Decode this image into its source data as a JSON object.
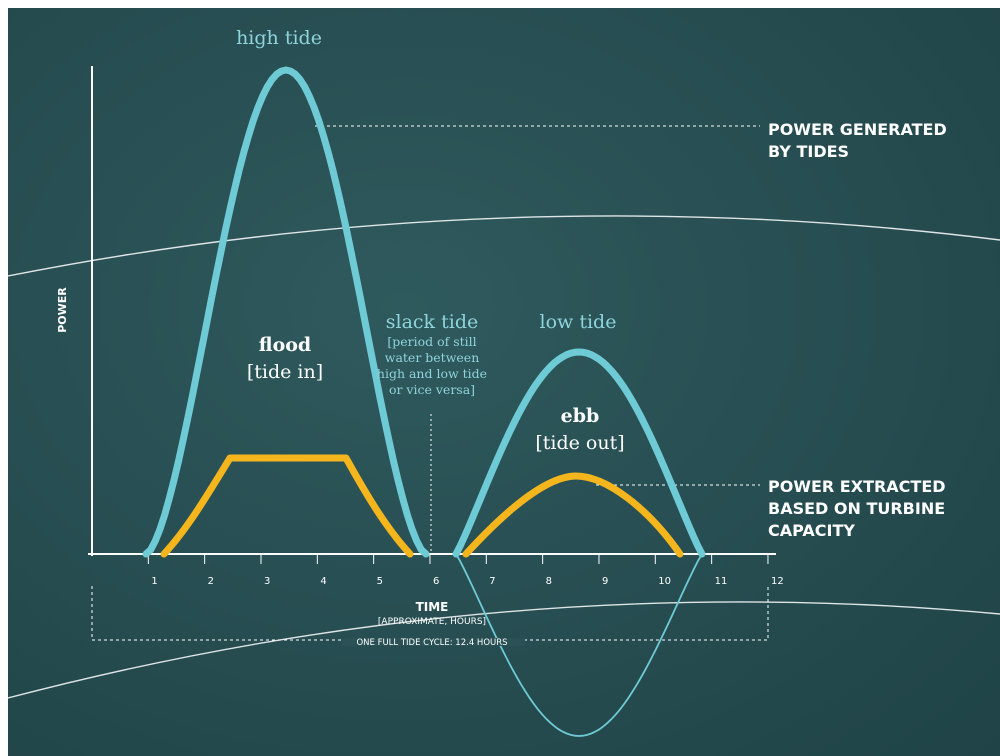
{
  "labels": {
    "high_tide": "high tide",
    "low_tide": "low tide",
    "flood": "flood",
    "flood_sub": "[tide in]",
    "ebb": "ebb",
    "ebb_sub": "[tide out]",
    "slack_title": "slack tide",
    "slack_desc": [
      "[period of still",
      "water between",
      "high and low tide",
      "or vice versa]"
    ],
    "power_generated": [
      "POWER GENERATED",
      "BY TIDES"
    ],
    "power_extracted": [
      "POWER EXTRACTED",
      "BASED ON TURBINE",
      "CAPACITY"
    ],
    "y_axis": "POWER",
    "x_axis": "TIME",
    "x_axis_sub": "[APPROXIMATE, HOURS]",
    "cycle": "ONE FULL TIDE CYCLE: 12.4 HOURS"
  },
  "ticks": [
    "1",
    "2",
    "3",
    "4",
    "5",
    "6",
    "7",
    "8",
    "9",
    "10",
    "11",
    "12"
  ],
  "colors": {
    "background": "#284f53",
    "tide_curve": "#6ecbd6",
    "extracted": "#f5b51c",
    "text_light": "#ffffff",
    "text_teal": "#8ed4dc"
  }
}
